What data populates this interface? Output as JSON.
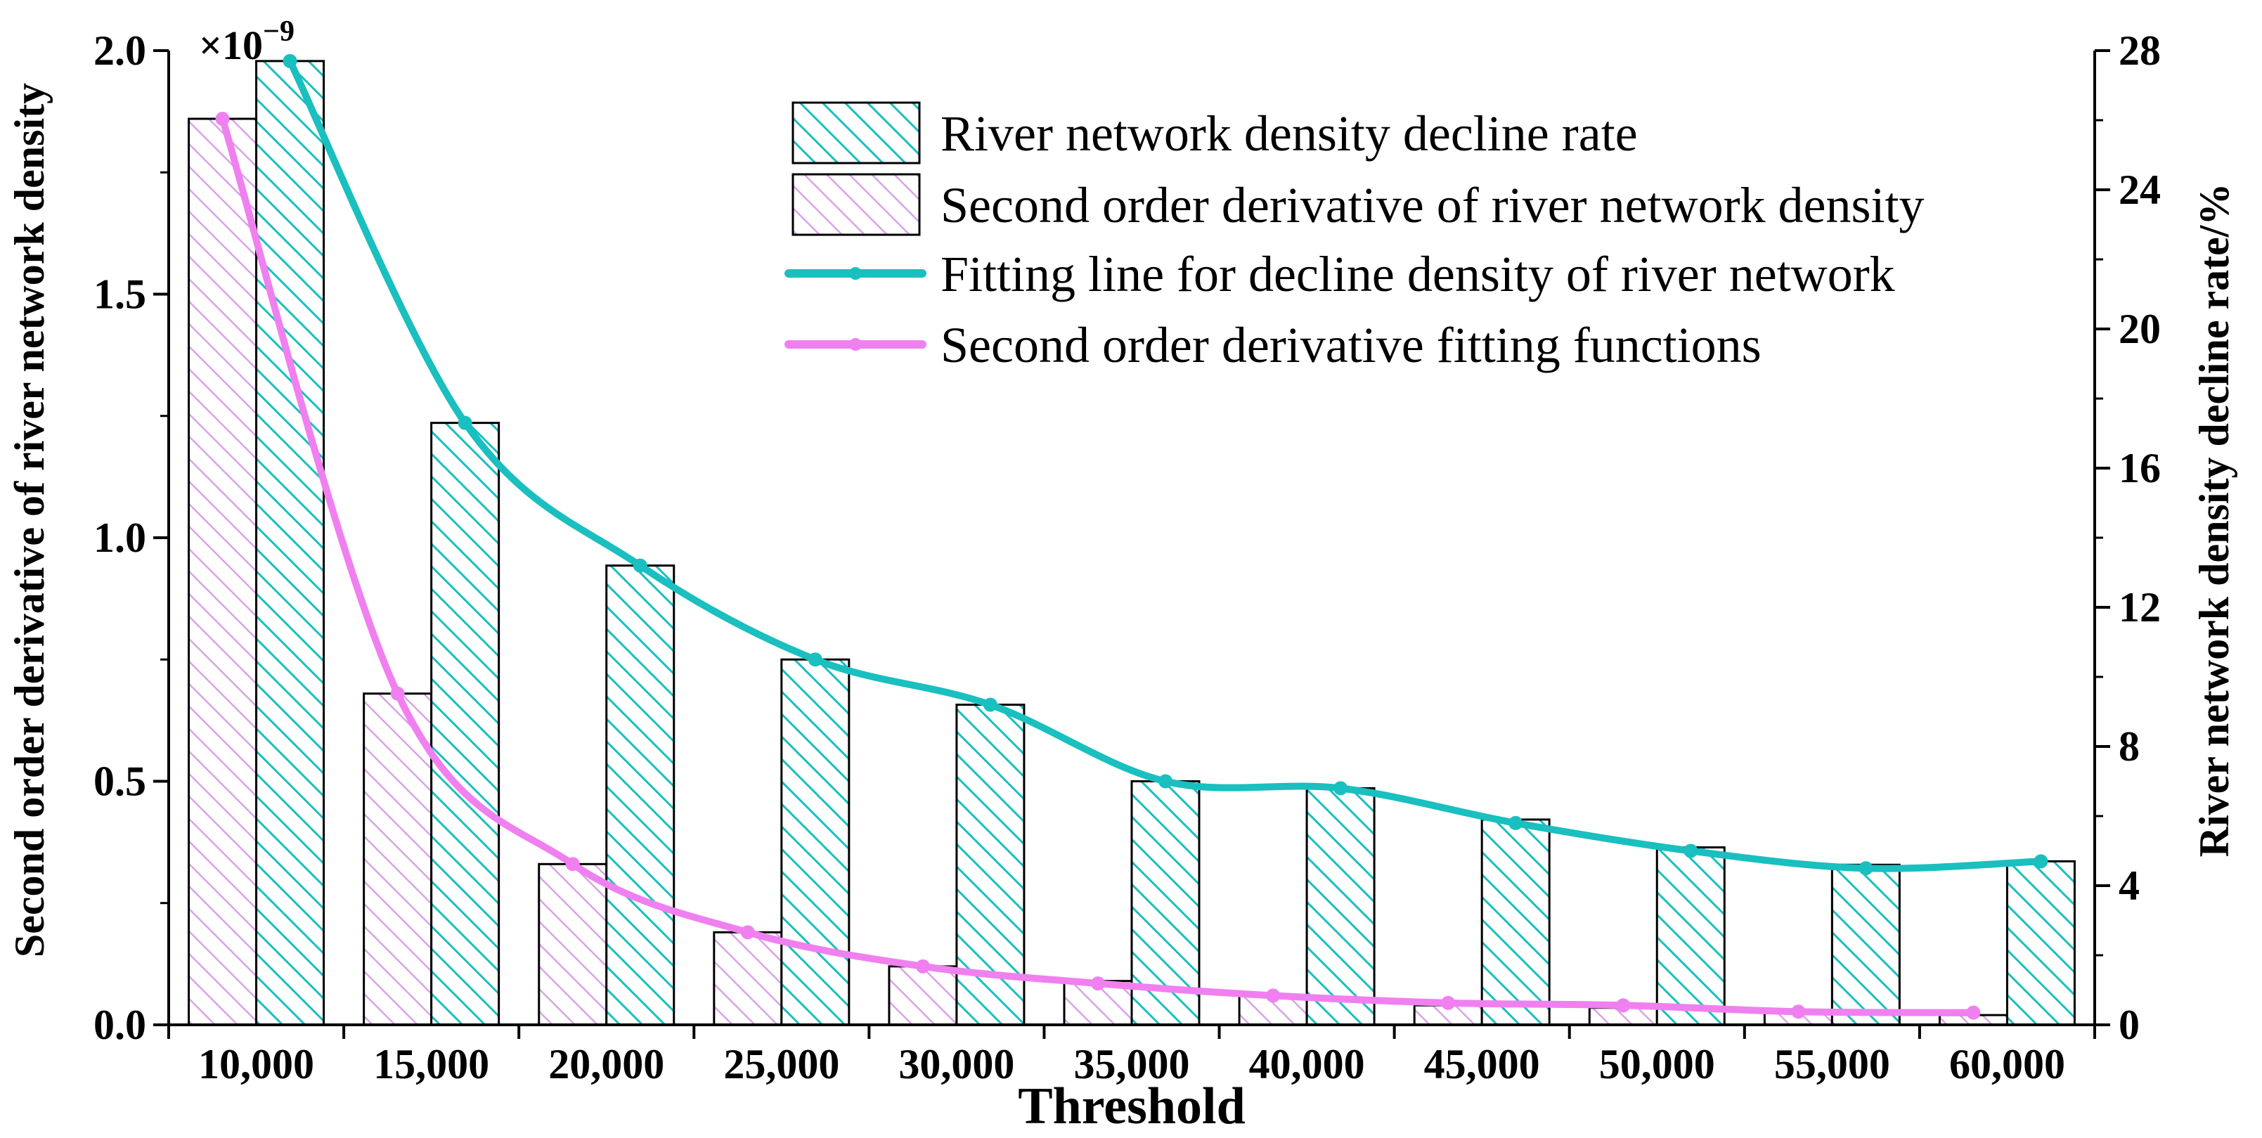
{
  "chart_data": {
    "type": "bar",
    "xlabel": "Threshold",
    "ylabel_left": "Second order derivative of river network density",
    "ylabel_right": "River network density decline rate/%",
    "left_axis_multiplier": "×10",
    "left_axis_exponent": "−9",
    "categories": [
      "10,000",
      "15,000",
      "20,000",
      "25,000",
      "30,000",
      "35,000",
      "40,000",
      "45,000",
      "50,000",
      "55,000",
      "60,000"
    ],
    "ylim_left": [
      0,
      2.0
    ],
    "yticks_left": [
      "0.0",
      "0.5",
      "1.0",
      "1.5",
      "2.0"
    ],
    "ylim_right": [
      0,
      28
    ],
    "yticks_right": [
      "0",
      "4",
      "8",
      "12",
      "16",
      "20",
      "24",
      "28"
    ],
    "series": [
      {
        "name": "River network density decline rate",
        "kind": "bar",
        "axis": "right",
        "color": "#1abfbf",
        "values": [
          27.7,
          17.3,
          13.2,
          10.5,
          9.2,
          7.0,
          6.8,
          5.9,
          5.1,
          4.6,
          4.7
        ]
      },
      {
        "name": "Second order derivative of river network density",
        "kind": "bar",
        "axis": "left",
        "color": "#e07fe0",
        "values": [
          1.86,
          0.68,
          0.33,
          0.19,
          0.12,
          0.09,
          0.06,
          0.04,
          0.035,
          0.025,
          0.02
        ]
      },
      {
        "name": "Fitting line for decline density of river network",
        "kind": "line",
        "axis": "right",
        "color": "#1abfbf",
        "x": [
          10000,
          15000,
          20000,
          25000,
          30000,
          35000,
          40000,
          45000,
          50000,
          55000,
          60000
        ],
        "values": [
          27.7,
          17.3,
          13.2,
          10.5,
          9.2,
          7.0,
          6.8,
          5.8,
          5.0,
          4.5,
          4.7
        ]
      },
      {
        "name": "Second order derivative fitting functions",
        "kind": "line",
        "axis": "left",
        "color": "#f080f0",
        "x": [
          10000,
          15000,
          20000,
          25000,
          30000,
          35000,
          40000,
          45000,
          50000,
          55000,
          60000
        ],
        "values": [
          1.86,
          0.68,
          0.33,
          0.19,
          0.12,
          0.085,
          0.06,
          0.045,
          0.04,
          0.027,
          0.025
        ]
      }
    ],
    "legend_position": "top-right",
    "grid": false
  },
  "colors": {
    "teal": "#1abfbf",
    "pink": "#f080f0",
    "pink_hatch": "#d9a3e8"
  }
}
